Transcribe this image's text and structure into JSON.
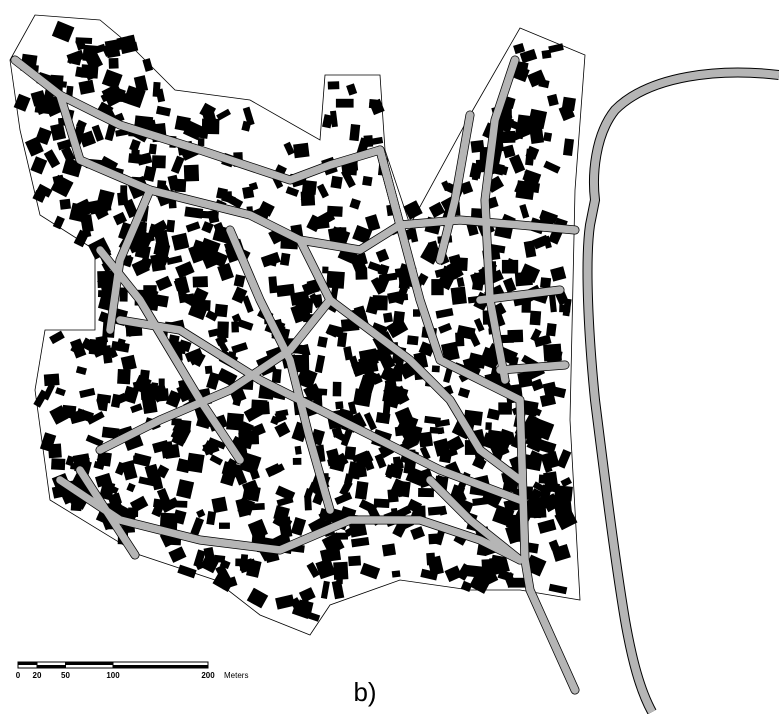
{
  "scale_bar": {
    "ticks": [
      0,
      20,
      50,
      100,
      200
    ],
    "unit": "Meters"
  },
  "caption": "b)"
}
